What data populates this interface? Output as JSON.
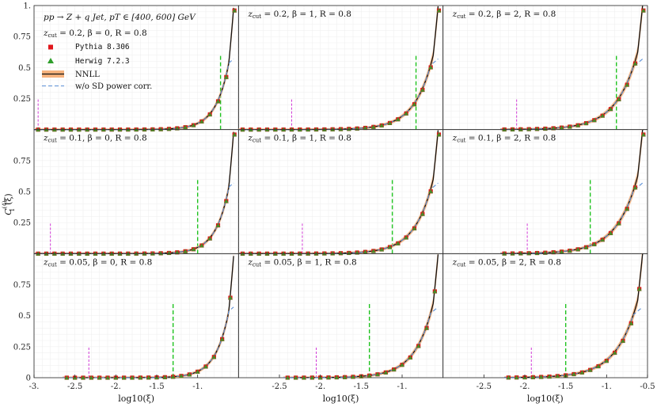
{
  "chart_data": {
    "type": "line",
    "title": "pp → Z + q Jet, pT ∈ [400, 600] GeV",
    "xlabel": "log10(ξ)",
    "ylabel": "C1(4)(ξ)",
    "ylim": [
      0,
      1.0
    ],
    "y_ticks": [
      0.25,
      0.5,
      0.75,
      1.0
    ],
    "y_tick_labels": [
      "0.25",
      "0.5",
      "0.75",
      "1."
    ],
    "grid": true,
    "legend_placement": "top-left of first panel",
    "legend": [
      {
        "name": "Pythia 8.306",
        "marker": "square",
        "color": "#e0161b"
      },
      {
        "name": "Herwig 7.2.3",
        "marker": "triangle",
        "color": "#2e9e2a"
      },
      {
        "name": "NNLL",
        "marker": "band",
        "color": "#f4a66a"
      },
      {
        "name": "w/o SD power corr.",
        "marker": "dashed",
        "color": "#5b8fd6"
      }
    ],
    "columns": [
      {
        "xlim": [
          -3.0,
          -0.5
        ],
        "ticks": [
          -3.0,
          -2.5,
          -2.0,
          -1.5,
          -1.0
        ],
        "tick_labels": [
          "-3.",
          "-2.5",
          "-2.",
          "-1.5",
          "-1."
        ]
      },
      {
        "xlim": [
          -3.0,
          -0.5
        ],
        "ticks": [
          -2.5,
          -2.0,
          -1.5,
          -1.0
        ],
        "tick_labels": [
          "-2.5",
          "-2.",
          "-1.5",
          "-1."
        ]
      },
      {
        "xlim": [
          -3.0,
          -0.5
        ],
        "ticks": [
          -2.5,
          -2.0,
          -1.5,
          -1.0,
          -0.5
        ],
        "tick_labels": [
          "-2.5",
          "-2.",
          "-1.5",
          "-1.",
          "-0.5"
        ]
      }
    ],
    "panels": [
      {
        "label": "zcut = 0.2, β = 0, R = 0.8",
        "label_parts": [
          "z",
          "cut",
          " = 0.2, β = 0, R = 0.8"
        ],
        "magenta_x": -2.95,
        "green_x": -0.72,
        "xstart": -3.0,
        "beta": 0
      },
      {
        "label": "zcut = 0.2, β = 1, R = 0.8",
        "label_parts": [
          "z",
          "cut",
          " = 0.2, β = 1, R = 0.8"
        ],
        "magenta_x": -2.35,
        "green_x": -0.83,
        "xstart": -3.0,
        "beta": 1
      },
      {
        "label": "zcut = 0.2, β = 2, R = 0.8",
        "label_parts": [
          "z",
          "cut",
          " = 0.2, β = 2, R = 0.8"
        ],
        "magenta_x": -2.1,
        "green_x": -0.88,
        "xstart": -2.3,
        "beta": 2
      },
      {
        "label": "zcut = 0.1, β = 0, R = 0.8",
        "label_parts": [
          "z",
          "cut",
          " = 0.1, β = 0, R = 0.8"
        ],
        "magenta_x": -2.8,
        "green_x": -1.0,
        "xstart": -3.0,
        "beta": 0
      },
      {
        "label": "zcut = 0.1, β = 1, R = 0.8",
        "label_parts": [
          "z",
          "cut",
          " = 0.1, β = 1, R = 0.8"
        ],
        "magenta_x": -2.22,
        "green_x": -1.12,
        "xstart": -3.0,
        "beta": 1
      },
      {
        "label": "zcut = 0.1, β = 2, R = 0.8",
        "label_parts": [
          "z",
          "cut",
          " = 0.1, β = 2, R = 0.8"
        ],
        "magenta_x": -1.97,
        "green_x": -1.2,
        "xstart": -2.3,
        "beta": 2
      },
      {
        "label": "zcut = 0.05, β = 0, R = 0.8",
        "label_parts": [
          "z",
          "cut",
          " = 0.05, β = 0, R = 0.8"
        ],
        "magenta_x": -2.33,
        "green_x": -1.3,
        "xstart": -2.65,
        "beta": 0
      },
      {
        "label": "zcut = 0.05, β = 1, R = 0.8",
        "label_parts": [
          "z",
          "cut",
          " = 0.05, β = 1, R = 0.8"
        ],
        "magenta_x": -2.05,
        "green_x": -1.4,
        "xstart": -2.45,
        "beta": 1
      },
      {
        "label": "zcut = 0.05, β = 2, R = 0.8",
        "label_parts": [
          "z",
          "cut",
          " = 0.05, β = 2, R = 0.8"
        ],
        "magenta_x": -1.92,
        "green_x": -1.5,
        "xstart": -2.25,
        "beta": 2
      }
    ]
  }
}
